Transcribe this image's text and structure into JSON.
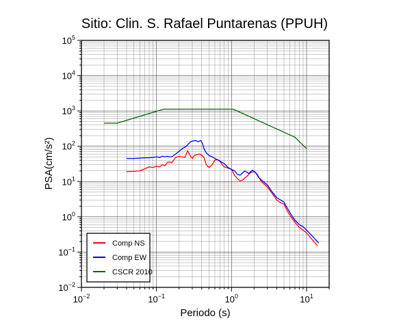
{
  "chart_data": {
    "type": "line",
    "title": "Sitio: Clin. S. Rafael Puntarenas (PPUH)",
    "xlabel": "Periodo (s)",
    "ylabel": "PSA(cm/s²)",
    "xscale": "log",
    "yscale": "log",
    "xlim": [
      0.01,
      20
    ],
    "ylim": [
      0.01,
      100000
    ],
    "x_ticks": [
      {
        "value": 0.01,
        "base": "10",
        "exp": "−2"
      },
      {
        "value": 0.1,
        "base": "10",
        "exp": "−1"
      },
      {
        "value": 1,
        "base": "10",
        "exp": "0"
      },
      {
        "value": 10,
        "base": "10",
        "exp": "1"
      }
    ],
    "y_ticks": [
      {
        "value": 0.01,
        "base": "10",
        "exp": "−2"
      },
      {
        "value": 0.1,
        "base": "10",
        "exp": "−1"
      },
      {
        "value": 1,
        "base": "10",
        "exp": "0"
      },
      {
        "value": 10,
        "base": "10",
        "exp": "1"
      },
      {
        "value": 100,
        "base": "10",
        "exp": "2"
      },
      {
        "value": 1000,
        "base": "10",
        "exp": "3"
      },
      {
        "value": 10000,
        "base": "10",
        "exp": "4"
      },
      {
        "value": 100000,
        "base": "10",
        "exp": "5"
      }
    ],
    "grid": true,
    "legend_position": "bottom-left",
    "series": [
      {
        "name": "Comp NS",
        "color": "#ff0000",
        "points": [
          [
            0.04,
            19
          ],
          [
            0.05,
            19.5
          ],
          [
            0.06,
            20
          ],
          [
            0.07,
            23
          ],
          [
            0.08,
            26
          ],
          [
            0.09,
            25
          ],
          [
            0.1,
            27
          ],
          [
            0.11,
            26
          ],
          [
            0.12,
            30
          ],
          [
            0.13,
            28
          ],
          [
            0.14,
            35
          ],
          [
            0.15,
            36
          ],
          [
            0.16,
            34
          ],
          [
            0.18,
            48
          ],
          [
            0.2,
            52
          ],
          [
            0.22,
            50
          ],
          [
            0.24,
            48
          ],
          [
            0.26,
            75
          ],
          [
            0.28,
            55
          ],
          [
            0.3,
            45
          ],
          [
            0.32,
            55
          ],
          [
            0.35,
            58
          ],
          [
            0.38,
            60
          ],
          [
            0.4,
            55
          ],
          [
            0.43,
            48
          ],
          [
            0.46,
            30
          ],
          [
            0.5,
            25
          ],
          [
            0.55,
            30
          ],
          [
            0.6,
            40
          ],
          [
            0.65,
            42
          ],
          [
            0.7,
            38
          ],
          [
            0.75,
            30
          ],
          [
            0.8,
            26
          ],
          [
            0.9,
            24
          ],
          [
            1.0,
            22
          ],
          [
            1.1,
            15
          ],
          [
            1.2,
            12
          ],
          [
            1.3,
            10.5
          ],
          [
            1.4,
            11
          ],
          [
            1.6,
            14
          ],
          [
            1.8,
            18
          ],
          [
            2.0,
            19
          ],
          [
            2.2,
            16
          ],
          [
            2.5,
            10
          ],
          [
            3.0,
            7
          ],
          [
            3.5,
            4.5
          ],
          [
            4.0,
            3
          ],
          [
            4.5,
            2.5
          ],
          [
            5.0,
            2.3
          ],
          [
            5.5,
            1.5
          ],
          [
            6.0,
            1.1
          ],
          [
            7.0,
            0.7
          ],
          [
            8.0,
            0.5
          ],
          [
            9.0,
            0.42
          ],
          [
            10.0,
            0.35
          ],
          [
            12.0,
            0.22
          ],
          [
            14.0,
            0.15
          ]
        ]
      },
      {
        "name": "Comp EW",
        "color": "#0000ff",
        "points": [
          [
            0.04,
            45
          ],
          [
            0.05,
            45
          ],
          [
            0.06,
            46
          ],
          [
            0.07,
            47
          ],
          [
            0.08,
            47
          ],
          [
            0.09,
            48
          ],
          [
            0.1,
            50
          ],
          [
            0.11,
            48
          ],
          [
            0.12,
            52
          ],
          [
            0.13,
            50
          ],
          [
            0.14,
            52
          ],
          [
            0.15,
            50
          ],
          [
            0.16,
            50
          ],
          [
            0.18,
            60
          ],
          [
            0.2,
            72
          ],
          [
            0.22,
            85
          ],
          [
            0.25,
            100
          ],
          [
            0.28,
            130
          ],
          [
            0.3,
            140
          ],
          [
            0.33,
            145
          ],
          [
            0.36,
            135
          ],
          [
            0.39,
            145
          ],
          [
            0.41,
            120
          ],
          [
            0.43,
            85
          ],
          [
            0.46,
            65
          ],
          [
            0.5,
            55
          ],
          [
            0.55,
            50
          ],
          [
            0.6,
            45
          ],
          [
            0.7,
            38
          ],
          [
            0.8,
            32
          ],
          [
            0.9,
            25
          ],
          [
            1.0,
            22
          ],
          [
            1.1,
            20
          ],
          [
            1.2,
            16
          ],
          [
            1.3,
            15
          ],
          [
            1.5,
            20
          ],
          [
            1.7,
            17
          ],
          [
            1.9,
            21
          ],
          [
            2.1,
            18
          ],
          [
            2.3,
            13
          ],
          [
            2.5,
            11
          ],
          [
            3.0,
            8
          ],
          [
            3.5,
            5
          ],
          [
            4.0,
            3.5
          ],
          [
            5.0,
            2.6
          ],
          [
            6.0,
            1.3
          ],
          [
            7.0,
            0.8
          ],
          [
            8.0,
            0.6
          ],
          [
            9.0,
            0.52
          ],
          [
            10.0,
            0.42
          ],
          [
            12.0,
            0.28
          ],
          [
            14.5,
            0.18
          ]
        ]
      },
      {
        "name": "CSCR 2010",
        "color": "#006400",
        "points": [
          [
            0.02,
            450
          ],
          [
            0.03,
            450
          ],
          [
            0.125,
            1125
          ],
          [
            1.05,
            1125
          ],
          [
            7.0,
            180
          ],
          [
            10.0,
            85
          ]
        ]
      }
    ]
  }
}
